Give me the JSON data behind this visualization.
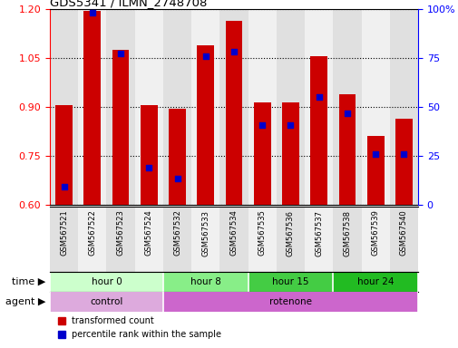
{
  "title": "GDS5341 / ILMN_2748708",
  "samples": [
    "GSM567521",
    "GSM567522",
    "GSM567523",
    "GSM567524",
    "GSM567532",
    "GSM567533",
    "GSM567534",
    "GSM567535",
    "GSM567536",
    "GSM567537",
    "GSM567538",
    "GSM567539",
    "GSM567540"
  ],
  "bar_tops": [
    0.905,
    1.195,
    1.075,
    0.905,
    0.895,
    1.09,
    1.165,
    0.915,
    0.915,
    1.055,
    0.94,
    0.81,
    0.865
  ],
  "bar_bottoms": [
    0.6,
    0.6,
    0.6,
    0.6,
    0.6,
    0.6,
    0.6,
    0.6,
    0.6,
    0.6,
    0.6,
    0.6,
    0.6
  ],
  "percentile_values": [
    0.655,
    1.19,
    1.065,
    0.715,
    0.68,
    1.055,
    1.07,
    0.845,
    0.845,
    0.93,
    0.88,
    0.755,
    0.755
  ],
  "ylim_left": [
    0.6,
    1.2
  ],
  "yticks_left": [
    0.6,
    0.75,
    0.9,
    1.05,
    1.2
  ],
  "ylim_right": [
    0,
    100
  ],
  "yticks_right": [
    0,
    25,
    50,
    75,
    100
  ],
  "bar_color": "#cc0000",
  "percentile_color": "#0000cc",
  "bar_width": 0.6,
  "time_groups": [
    {
      "label": "hour 0",
      "start": 0,
      "end": 4,
      "color": "#ccffcc"
    },
    {
      "label": "hour 8",
      "start": 4,
      "end": 7,
      "color": "#88ee88"
    },
    {
      "label": "hour 15",
      "start": 7,
      "end": 10,
      "color": "#44cc44"
    },
    {
      "label": "hour 24",
      "start": 10,
      "end": 13,
      "color": "#22bb22"
    }
  ],
  "agent_groups": [
    {
      "label": "control",
      "start": 0,
      "end": 4,
      "color": "#ddaadd"
    },
    {
      "label": "rotenone",
      "start": 4,
      "end": 13,
      "color": "#cc66cc"
    }
  ],
  "time_label": "time",
  "agent_label": "agent",
  "legend_bar_label": "transformed count",
  "legend_pct_label": "percentile rank within the sample",
  "grid_color": "black",
  "right_axis_color": "blue",
  "left_axis_color": "red",
  "col_colors": [
    "#e0e0e0",
    "#f0f0f0"
  ]
}
